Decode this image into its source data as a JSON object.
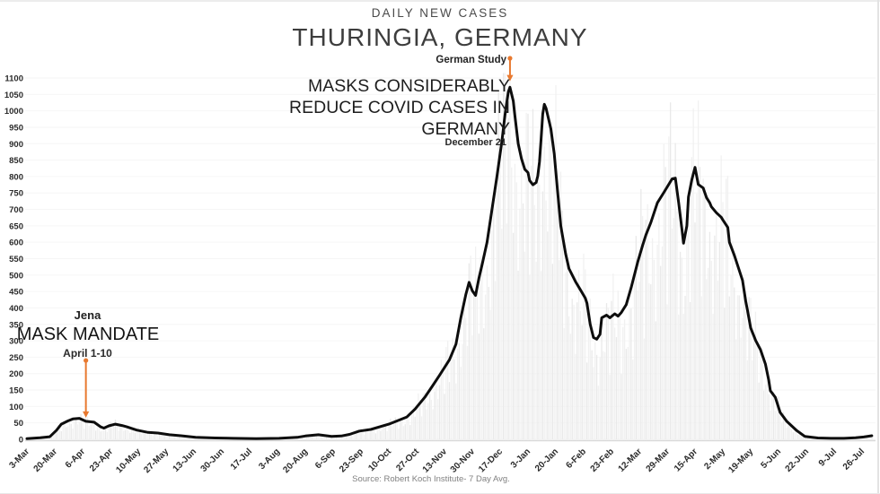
{
  "page": {
    "title": "DAILY NEW CASES",
    "subtitle": "THURINGIA, GERMANY",
    "source": "Source: Robert Koch Institute- 7 Day Avg."
  },
  "annotations": {
    "german_study": {
      "label": "German Study",
      "headline_lines": [
        "MASKS CONSIDERABLY",
        "REDUCE COVID CASES IN",
        "GERMANY"
      ],
      "date": "December 21",
      "arrow": {
        "day": 295,
        "from_value": 1160,
        "to_value": 1090
      },
      "arrow_color": "#E8792F"
    },
    "jena": {
      "label": "Jena",
      "headline": "MASK MANDATE",
      "date": "April 1-10",
      "arrow": {
        "day": 36,
        "from_value": 240,
        "to_value": 66
      },
      "arrow_color": "#E8792F"
    }
  },
  "chart_data": {
    "type": "line",
    "title": "DAILY NEW CASES",
    "subtitle": "THURINGIA, GERMANY",
    "xlabel": "",
    "ylabel": "",
    "ylim": [
      0,
      1100
    ],
    "y_tick_step": 50,
    "x_day_domain": [
      0,
      516
    ],
    "x_tick_day_interval": 17,
    "x_tick_labels": [
      "3-Mar",
      "20-Mar",
      "6-Apr",
      "23-Apr",
      "10-May",
      "27-May",
      "13-Jun",
      "30-Jun",
      "17-Jul",
      "3-Aug",
      "20-Aug",
      "6-Sep",
      "23-Sep",
      "10-Oct",
      "27-Oct",
      "13-Nov",
      "30-Nov",
      "17-Dec",
      "3-Jan",
      "20-Jan",
      "6-Feb",
      "23-Feb",
      "12-Mar",
      "29-Mar",
      "15-Apr",
      "2-May",
      "19-May",
      "5-Jun",
      "22-Jun",
      "9-Jul",
      "26-Jul"
    ],
    "grid": "faint-horizontal",
    "legend": "none",
    "series": [
      {
        "name": "7 Day Avg",
        "color": "#0d0d0d",
        "stroke_width": 3,
        "points": [
          [
            0,
            2
          ],
          [
            8,
            5
          ],
          [
            14,
            8
          ],
          [
            18,
            27
          ],
          [
            21,
            46
          ],
          [
            25,
            56
          ],
          [
            28,
            62
          ],
          [
            32,
            64
          ],
          [
            36,
            55
          ],
          [
            41,
            52
          ],
          [
            45,
            38
          ],
          [
            47,
            34
          ],
          [
            50,
            41
          ],
          [
            54,
            46
          ],
          [
            58,
            42
          ],
          [
            61,
            38
          ],
          [
            67,
            28
          ],
          [
            74,
            21
          ],
          [
            80,
            19
          ],
          [
            87,
            14
          ],
          [
            94,
            11
          ],
          [
            103,
            6
          ],
          [
            115,
            4
          ],
          [
            126,
            3
          ],
          [
            140,
            2
          ],
          [
            154,
            3
          ],
          [
            165,
            6
          ],
          [
            170,
            10
          ],
          [
            178,
            14
          ],
          [
            186,
            9
          ],
          [
            192,
            10
          ],
          [
            197,
            15
          ],
          [
            203,
            25
          ],
          [
            210,
            30
          ],
          [
            221,
            46
          ],
          [
            232,
            68
          ],
          [
            237,
            92
          ],
          [
            243,
            128
          ],
          [
            248,
            165
          ],
          [
            252,
            195
          ],
          [
            258,
            242
          ],
          [
            262,
            290
          ],
          [
            265,
            370
          ],
          [
            268,
            440
          ],
          [
            270,
            478
          ],
          [
            272,
            452
          ],
          [
            274,
            438
          ],
          [
            276,
            490
          ],
          [
            278,
            532
          ],
          [
            281,
            600
          ],
          [
            284,
            700
          ],
          [
            287,
            800
          ],
          [
            290,
            905
          ],
          [
            292,
            990
          ],
          [
            294,
            1058
          ],
          [
            295,
            1072
          ],
          [
            297,
            1030
          ],
          [
            298,
            985
          ],
          [
            300,
            900
          ],
          [
            302,
            855
          ],
          [
            304,
            822
          ],
          [
            306,
            812
          ],
          [
            307,
            788
          ],
          [
            309,
            775
          ],
          [
            311,
            782
          ],
          [
            312,
            802
          ],
          [
            313,
            845
          ],
          [
            314,
            915
          ],
          [
            315,
            990
          ],
          [
            316,
            1020
          ],
          [
            317,
            1008
          ],
          [
            320,
            945
          ],
          [
            322,
            870
          ],
          [
            324,
            760
          ],
          [
            326,
            650
          ],
          [
            329,
            565
          ],
          [
            331,
            520
          ],
          [
            335,
            480
          ],
          [
            338,
            455
          ],
          [
            341,
            430
          ],
          [
            342,
            415
          ],
          [
            344,
            350
          ],
          [
            346,
            310
          ],
          [
            348,
            305
          ],
          [
            350,
            320
          ],
          [
            351,
            370
          ],
          [
            354,
            378
          ],
          [
            356,
            370
          ],
          [
            359,
            382
          ],
          [
            361,
            375
          ],
          [
            363,
            386
          ],
          [
            366,
            410
          ],
          [
            369,
            462
          ],
          [
            373,
            540
          ],
          [
            376,
            590
          ],
          [
            378,
            622
          ],
          [
            381,
            660
          ],
          [
            385,
            720
          ],
          [
            389,
            752
          ],
          [
            394,
            793
          ],
          [
            396,
            795
          ],
          [
            398,
            720
          ],
          [
            400,
            640
          ],
          [
            401,
            597
          ],
          [
            403,
            650
          ],
          [
            404,
            738
          ],
          [
            406,
            790
          ],
          [
            408,
            828
          ],
          [
            410,
            776
          ],
          [
            413,
            765
          ],
          [
            415,
            736
          ],
          [
            417,
            720
          ],
          [
            418,
            708
          ],
          [
            421,
            690
          ],
          [
            424,
            676
          ],
          [
            425,
            668
          ],
          [
            428,
            645
          ],
          [
            429,
            600
          ],
          [
            432,
            560
          ],
          [
            434,
            530
          ],
          [
            437,
            484
          ],
          [
            439,
            420
          ],
          [
            440,
            393
          ],
          [
            442,
            339
          ],
          [
            445,
            301
          ],
          [
            448,
            273
          ],
          [
            451,
            229
          ],
          [
            453,
            180
          ],
          [
            454,
            148
          ],
          [
            457,
            128
          ],
          [
            460,
            82
          ],
          [
            464,
            55
          ],
          [
            470,
            27
          ],
          [
            475,
            9
          ],
          [
            483,
            4
          ],
          [
            491,
            3
          ],
          [
            499,
            3
          ],
          [
            506,
            5
          ],
          [
            511,
            7
          ],
          [
            516,
            11
          ]
        ]
      }
    ],
    "background_bars": {
      "name": "Daily new cases (raw)",
      "color_a": "#e9e9e9",
      "color_b": "#f1f1f1",
      "note": "faint vertical bars behind the 7-day-average line; daily values oscillate roughly 0.3x-1.35x around the average with a weekly rhythm"
    },
    "axis_text_color": "#2b2b2b",
    "baseline_color": "#d9d9d9"
  }
}
